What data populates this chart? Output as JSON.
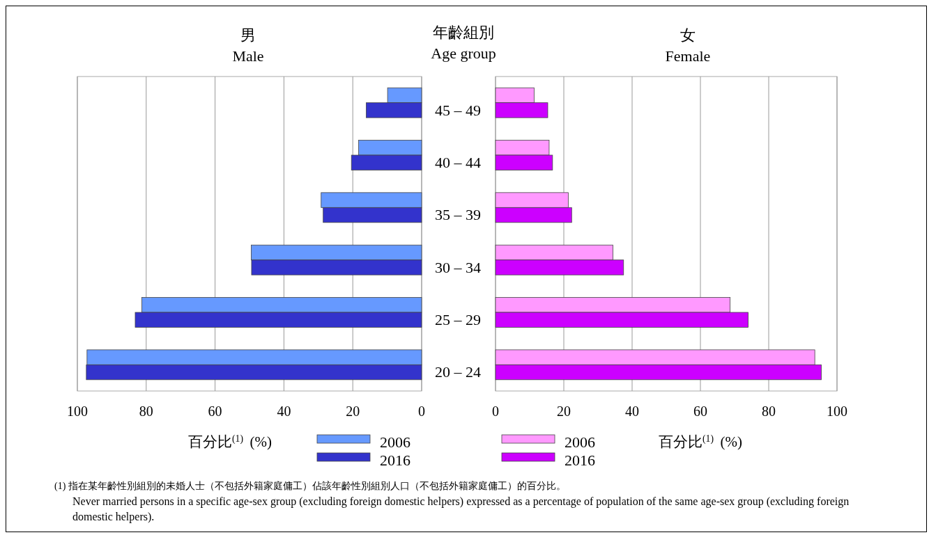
{
  "chart_data": [
    {
      "type": "bar",
      "orientation": "horizontal",
      "title": "男\nMale",
      "xlabel": "百分比$^{(1)}$ (%)",
      "categories": [
        null,
        null,
        null,
        null,
        null,
        null
      ],
      "series": [
        {
          "name": "2006",
          "color": "#6699ff",
          "values": [
            9.9,
            18.3,
            29.2,
            49.5,
            81.3,
            97.2
          ]
        },
        {
          "name": "2016",
          "color": "#3333cc",
          "values": [
            16.1,
            20.4,
            28.6,
            49.4,
            83.2,
            97.4
          ]
        }
      ],
      "xlim": [
        100,
        0
      ],
      "xticks": [
        100,
        80,
        60,
        40,
        20,
        0
      ],
      "grid": "x",
      "legend": "bottom",
      "tick_labels": "x",
      "annotations": [
        "(1) 指在某年齡性別組別的未婚人士（不包括外籍家庭傭工）佔該年齡性別組別人口（不包括外籍家庭傭工）的百分比。",
        "Never married persons in a specific age-sex group (excluding foreign domestic helpers) expressed as a percentage of population of the same age-sex group (excluding foreign domestic helpers)."
      ]
    },
    {
      "type": "bar",
      "orientation": "horizontal",
      "title": "女\nFemale",
      "ylabel": "年齡組別\nAge group",
      "xlabel": "百分比$^{(1)}$ (%)",
      "categories": [
        "45 – 49",
        "40 – 44",
        "35 – 39",
        "30 – 34",
        "25 – 29",
        "20 – 24"
      ],
      "series": [
        {
          "name": "2006",
          "color": "#ff99ff",
          "values": [
            11.3,
            15.7,
            21.3,
            34.4,
            68.7,
            93.5
          ]
        },
        {
          "name": "2016",
          "color": "#cc00ff",
          "values": [
            15.3,
            16.7,
            22.3,
            37.5,
            74.0,
            95.4
          ]
        }
      ],
      "xlim": [
        0,
        100
      ],
      "xticks": [
        0,
        20,
        40,
        60,
        80,
        100
      ],
      "grid": "x",
      "legend": "bottom"
    }
  ]
}
